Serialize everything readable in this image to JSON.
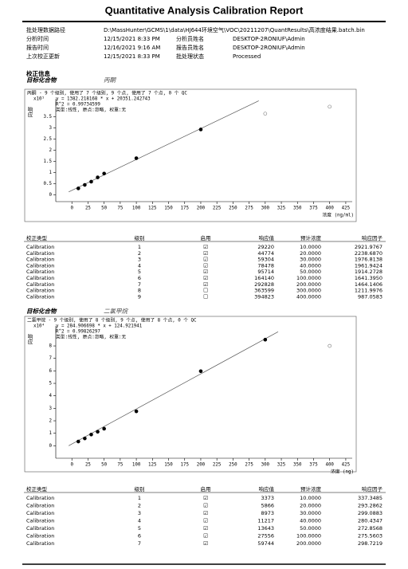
{
  "header": {
    "title": "Quantitative Analysis Calibration Report"
  },
  "info": [
    {
      "label": "批处理数据路径",
      "value": "D:\\MassHunter\\GCMS\\1\\data\\HJ644环境空气\\VOC\\20211207\\QuantResults\\高浓度结果.batch.bin"
    },
    {
      "label": "分析时间",
      "value": "12/15/2021 8:33 PM",
      "label2": "分析员姓名",
      "value2": "DESKTOP-2RONIUF\\Admin"
    },
    {
      "label": "报告时间",
      "value": "12/16/2021 9:16 AM",
      "label2": "报告员姓名",
      "value2": "DESKTOP-2RONIUF\\Admin"
    },
    {
      "label": "上次校正更新",
      "value": "12/15/2021 8:33 PM",
      "label2": "批处理状态",
      "value2": "Processed"
    }
  ],
  "section_title": "校正信息",
  "compounds": [
    {
      "label": "目标化合物",
      "name": "丙酮",
      "chart": {
        "summary": "丙酮 - 9 个级别, 使用了 7 个级别, 9 个点, 使用了 7 个点, 0 个 QC",
        "equation": "y = 1382.218168 * x + 20351.242743",
        "r2": "R^2 = 0.99734599",
        "method": "类型:线性, 原点:忽略, 权重:无",
        "y_label": "响应",
        "y_multiplier": "x10⁵",
        "x_label": "浓度 (ng/ml)",
        "xlim": [
          -25,
          435
        ],
        "xticks": [
          0,
          25,
          50,
          75,
          100,
          125,
          150,
          175,
          200,
          225,
          250,
          275,
          300,
          325,
          350,
          375,
          400,
          425
        ],
        "ylim": [
          -0.3,
          4.3
        ],
        "yticks": [
          0,
          0.5,
          1,
          1.5,
          2,
          2.5,
          3,
          3.5
        ],
        "points": {
          "x": [
            10,
            20,
            30,
            40,
            50,
            100,
            200,
            300,
            400
          ],
          "y": [
            0.2922,
            0.44774,
            0.59304,
            0.78478,
            0.95714,
            1.6414,
            2.92828,
            3.63599,
            3.94823
          ],
          "used": [
            true,
            true,
            true,
            true,
            true,
            true,
            true,
            false,
            false
          ]
        },
        "fit": {
          "x": [
            -5,
            290
          ],
          "y": [
            0.134,
            4.212
          ]
        }
      },
      "table": {
        "columns": [
          "校正类型",
          "级别",
          "启用",
          "响应值",
          "预计浓度",
          "响应因子"
        ],
        "rows": [
          [
            "Calibration",
            "1",
            "☑",
            "29220",
            "10.0000",
            "2921.9767"
          ],
          [
            "Calibration",
            "2",
            "☑",
            "44774",
            "20.0000",
            "2238.6870"
          ],
          [
            "Calibration",
            "3",
            "☑",
            "59304",
            "30.0000",
            "1976.8138"
          ],
          [
            "Calibration",
            "4",
            "☑",
            "78478",
            "40.0000",
            "1961.9424"
          ],
          [
            "Calibration",
            "5",
            "☑",
            "95714",
            "50.0000",
            "1914.2728"
          ],
          [
            "Calibration",
            "6",
            "☑",
            "164140",
            "100.0000",
            "1641.3950"
          ],
          [
            "Calibration",
            "7",
            "☑",
            "292828",
            "200.0000",
            "1464.1406"
          ],
          [
            "Calibration",
            "8",
            "☐",
            "363599",
            "300.0000",
            "1211.9976"
          ],
          [
            "Calibration",
            "9",
            "☐",
            "394823",
            "400.0000",
            "987.0583"
          ]
        ]
      }
    },
    {
      "label": "目标化合物",
      "name": "二氯甲烷",
      "chart": {
        "summary": "二氯甲烷 - 9 个级别, 使用了 8 个级别, 9 个点, 使用了 8 个点, 0 个 QC",
        "equation": "y = 284.906698 * x + 124.921941",
        "r2": "R^2 = 0.99826297",
        "method": "类型:线性, 原点:忽略, 权重:无",
        "y_label": "响应",
        "y_multiplier": "x10⁴",
        "x_label": "浓度 (ng)",
        "xlim": [
          -25,
          435
        ],
        "xticks": [
          0,
          25,
          50,
          75,
          100,
          125,
          150,
          175,
          200,
          225,
          250,
          275,
          300,
          325,
          350,
          375,
          400,
          425
        ],
        "ylim": [
          -1,
          9.6
        ],
        "yticks": [
          0,
          1,
          2,
          3,
          4,
          5,
          6,
          7,
          8
        ],
        "points": {
          "x": [
            10,
            20,
            30,
            40,
            50,
            100,
            200,
            300,
            400
          ],
          "y": [
            0.3373,
            0.5866,
            0.8973,
            1.1217,
            1.3643,
            2.7556,
            5.9744,
            8.5,
            8.0
          ],
          "used": [
            true,
            true,
            true,
            true,
            true,
            true,
            true,
            true,
            false
          ]
        },
        "fit": {
          "x": [
            -5,
            320
          ],
          "y": [
            -0.0017,
            9.13
          ]
        }
      },
      "table": {
        "columns": [
          "校正类型",
          "级别",
          "启用",
          "响应值",
          "预计浓度",
          "响应因子"
        ],
        "rows": [
          [
            "Calibration",
            "1",
            "☑",
            "3373",
            "10.0000",
            "337.3485"
          ],
          [
            "Calibration",
            "2",
            "☑",
            "5866",
            "20.0000",
            "293.2862"
          ],
          [
            "Calibration",
            "3",
            "☑",
            "8973",
            "30.0000",
            "299.0883"
          ],
          [
            "Calibration",
            "4",
            "☑",
            "11217",
            "40.0000",
            "280.4347"
          ],
          [
            "Calibration",
            "5",
            "☑",
            "13643",
            "50.0000",
            "272.8568"
          ],
          [
            "Calibration",
            "6",
            "☑",
            "27556",
            "100.0000",
            "275.5603"
          ],
          [
            "Calibration",
            "7",
            "☑",
            "59744",
            "200.0000",
            "298.7219"
          ]
        ]
      }
    }
  ]
}
